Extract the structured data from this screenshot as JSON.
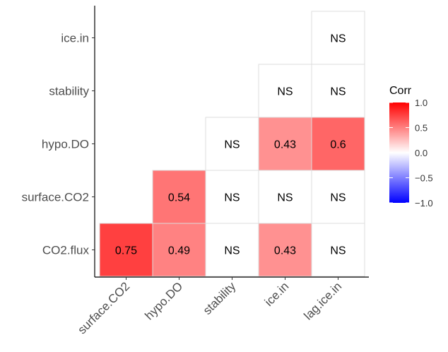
{
  "chart_data": {
    "type": "heatmap",
    "x_categories": [
      "surface.CO2",
      "hypo.DO",
      "stability",
      "ice.in",
      "lag.ice.in"
    ],
    "y_categories": [
      "CO2.flux",
      "surface.CO2",
      "hypo.DO",
      "stability",
      "ice.in"
    ],
    "cells": [
      {
        "x": "surface.CO2",
        "y": "CO2.flux",
        "value": 0.75,
        "label": "0.75"
      },
      {
        "x": "hypo.DO",
        "y": "CO2.flux",
        "value": 0.49,
        "label": "0.49"
      },
      {
        "x": "stability",
        "y": "CO2.flux",
        "value": null,
        "label": "NS"
      },
      {
        "x": "ice.in",
        "y": "CO2.flux",
        "value": 0.43,
        "label": "0.43"
      },
      {
        "x": "lag.ice.in",
        "y": "CO2.flux",
        "value": null,
        "label": "NS"
      },
      {
        "x": "hypo.DO",
        "y": "surface.CO2",
        "value": 0.54,
        "label": "0.54"
      },
      {
        "x": "stability",
        "y": "surface.CO2",
        "value": null,
        "label": "NS"
      },
      {
        "x": "ice.in",
        "y": "surface.CO2",
        "value": null,
        "label": "NS"
      },
      {
        "x": "lag.ice.in",
        "y": "surface.CO2",
        "value": null,
        "label": "NS"
      },
      {
        "x": "stability",
        "y": "hypo.DO",
        "value": null,
        "label": "NS"
      },
      {
        "x": "ice.in",
        "y": "hypo.DO",
        "value": 0.43,
        "label": "0.43"
      },
      {
        "x": "lag.ice.in",
        "y": "hypo.DO",
        "value": 0.6,
        "label": "0.6"
      },
      {
        "x": "ice.in",
        "y": "stability",
        "value": null,
        "label": "NS"
      },
      {
        "x": "lag.ice.in",
        "y": "stability",
        "value": null,
        "label": "NS"
      },
      {
        "x": "lag.ice.in",
        "y": "ice.in",
        "value": null,
        "label": "NS"
      }
    ],
    "legend": {
      "title": "Corr",
      "ticks": [
        "1.0",
        "0.5",
        "0.0",
        "−0.5",
        "−1.0"
      ],
      "range": [
        -1,
        1
      ],
      "placement": "right"
    },
    "colors": {
      "low": "#0000ff",
      "mid": "#ffffff",
      "high": "#ff0000"
    },
    "grid": false
  }
}
